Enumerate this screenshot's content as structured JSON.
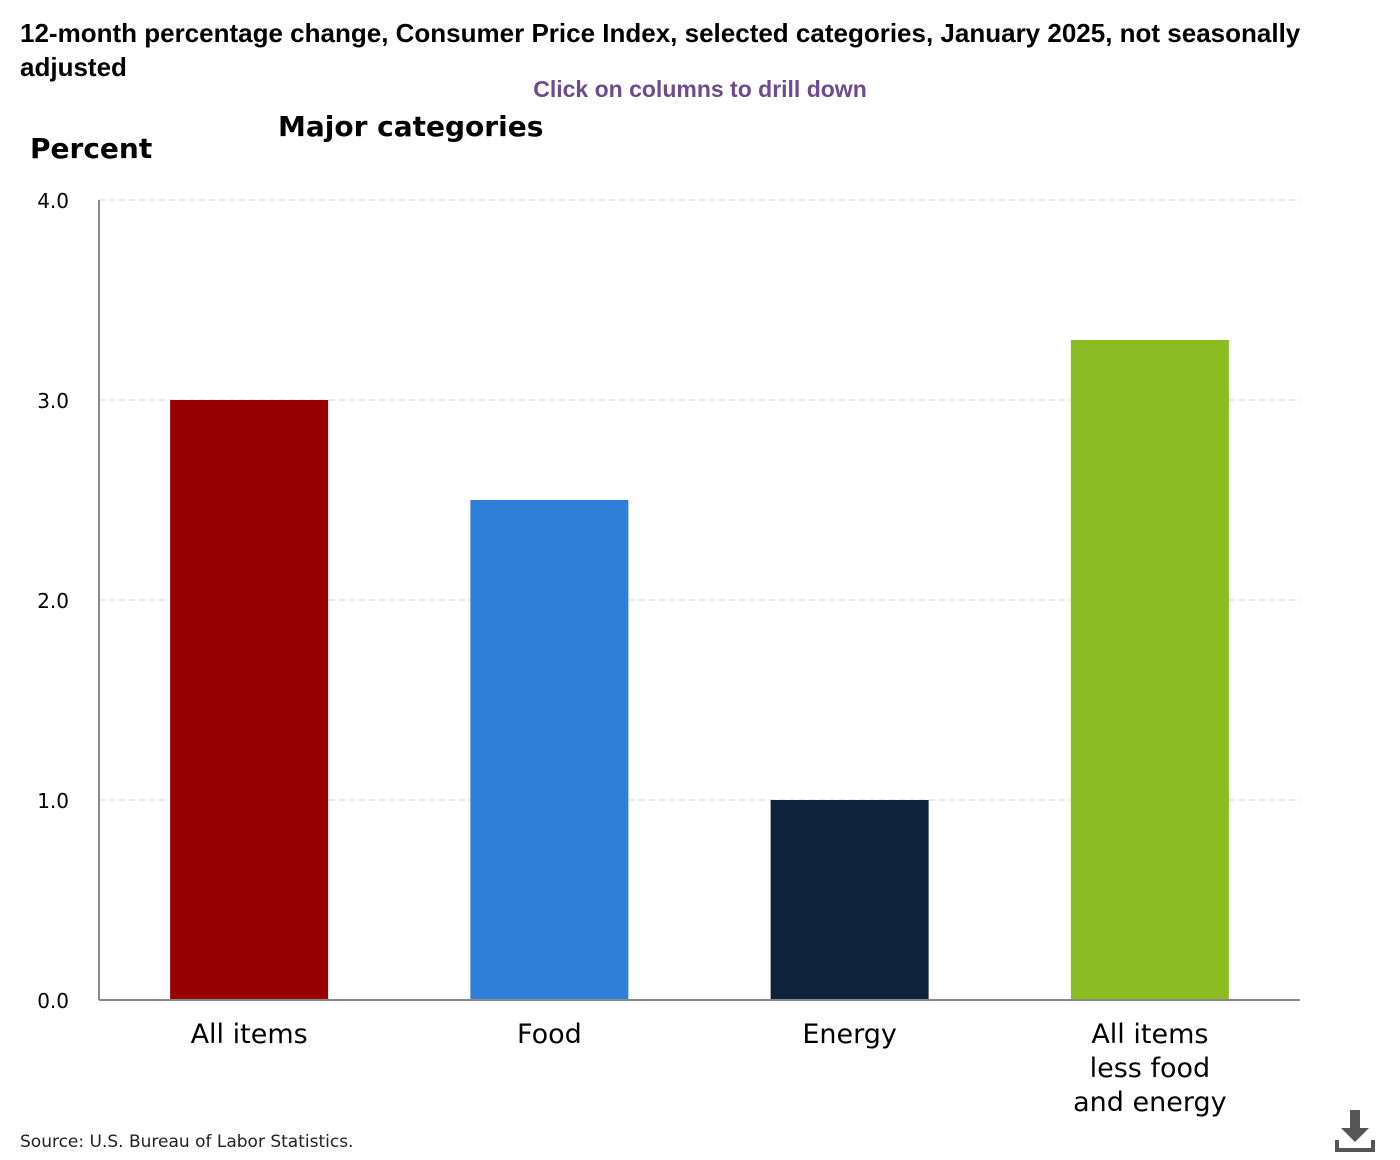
{
  "header": {
    "title": "12-month percentage change, Consumer Price Index, selected categories, January 2025, not seasonally adjusted",
    "drill_hint": "Click on columns to drill down"
  },
  "footer": {
    "source": "Source: U.S. Bureau of Labor Statistics.",
    "download_icon": "download-icon"
  },
  "chart_data": {
    "type": "bar",
    "title": "Major categories",
    "ylabel": "Percent",
    "xlabel": "",
    "categories": [
      "All items",
      "Food",
      "Energy",
      "All items less food and energy"
    ],
    "category_lines": [
      [
        "All items"
      ],
      [
        "Food"
      ],
      [
        "Energy"
      ],
      [
        "All items",
        "less food",
        "and energy"
      ]
    ],
    "values": [
      3.0,
      2.5,
      1.0,
      3.3
    ],
    "colors": [
      "#960000",
      "#2f7ed8",
      "#0f233c",
      "#8bbc21"
    ],
    "ylim": [
      0,
      4
    ],
    "yticks": [
      "0.0",
      "1.0",
      "2.0",
      "3.0",
      "4.0"
    ],
    "grid": true,
    "legend": "none"
  }
}
